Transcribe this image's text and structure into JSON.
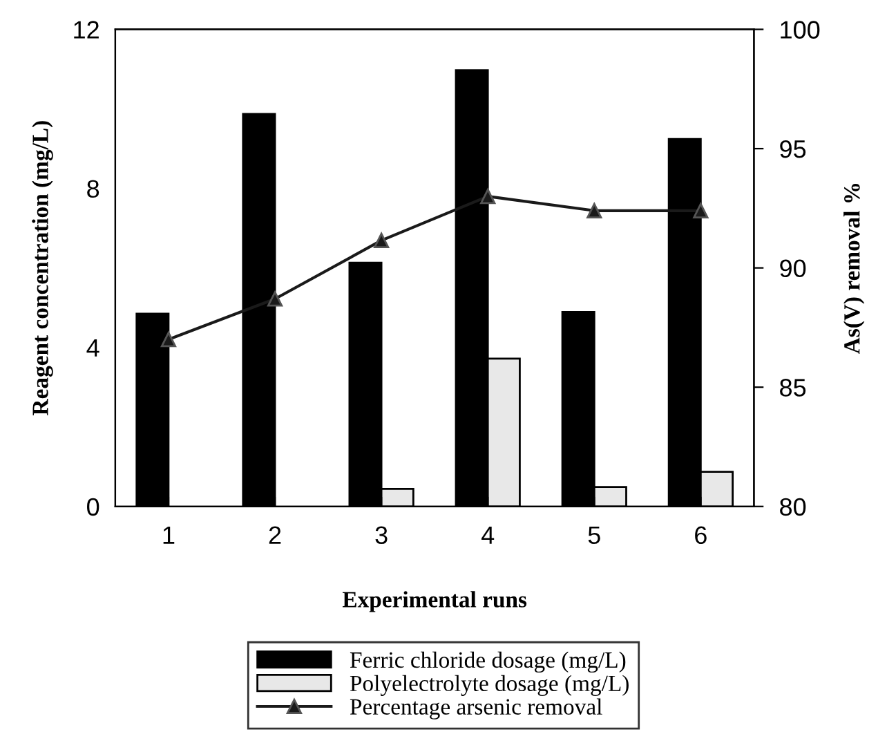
{
  "chart_data": {
    "type": "bar",
    "xlabel": "Experimental runs",
    "ylabel": "Reagent concentration (mg/L)",
    "y2label": "As(V) removal %",
    "categories": [
      "1",
      "2",
      "3",
      "4",
      "5",
      "6"
    ],
    "series": [
      {
        "name": "Ferric chloride dosage (mg/L)",
        "color": "#000000",
        "values": [
          4.85,
          9.87,
          6.13,
          10.97,
          4.89,
          9.24
        ]
      },
      {
        "name": "Polyelectrolyte dosage (mg/L)",
        "color": "#e8e8e8",
        "values": [
          null,
          null,
          0.44,
          3.72,
          0.49,
          0.87
        ]
      },
      {
        "name": "Percentage arsenic removal",
        "type": "line",
        "axis": "y2",
        "color": "#1a1a1a",
        "marker": "triangle",
        "values": [
          87.0,
          88.7,
          91.15,
          93.0,
          92.4,
          92.4
        ]
      }
    ],
    "ylim": [
      0,
      12
    ],
    "yticks": [
      0,
      4,
      8,
      12
    ],
    "y2lim": [
      80,
      100
    ],
    "y2ticks": [
      80,
      85,
      90,
      95,
      100
    ],
    "grid": false,
    "legend": "bottom"
  }
}
